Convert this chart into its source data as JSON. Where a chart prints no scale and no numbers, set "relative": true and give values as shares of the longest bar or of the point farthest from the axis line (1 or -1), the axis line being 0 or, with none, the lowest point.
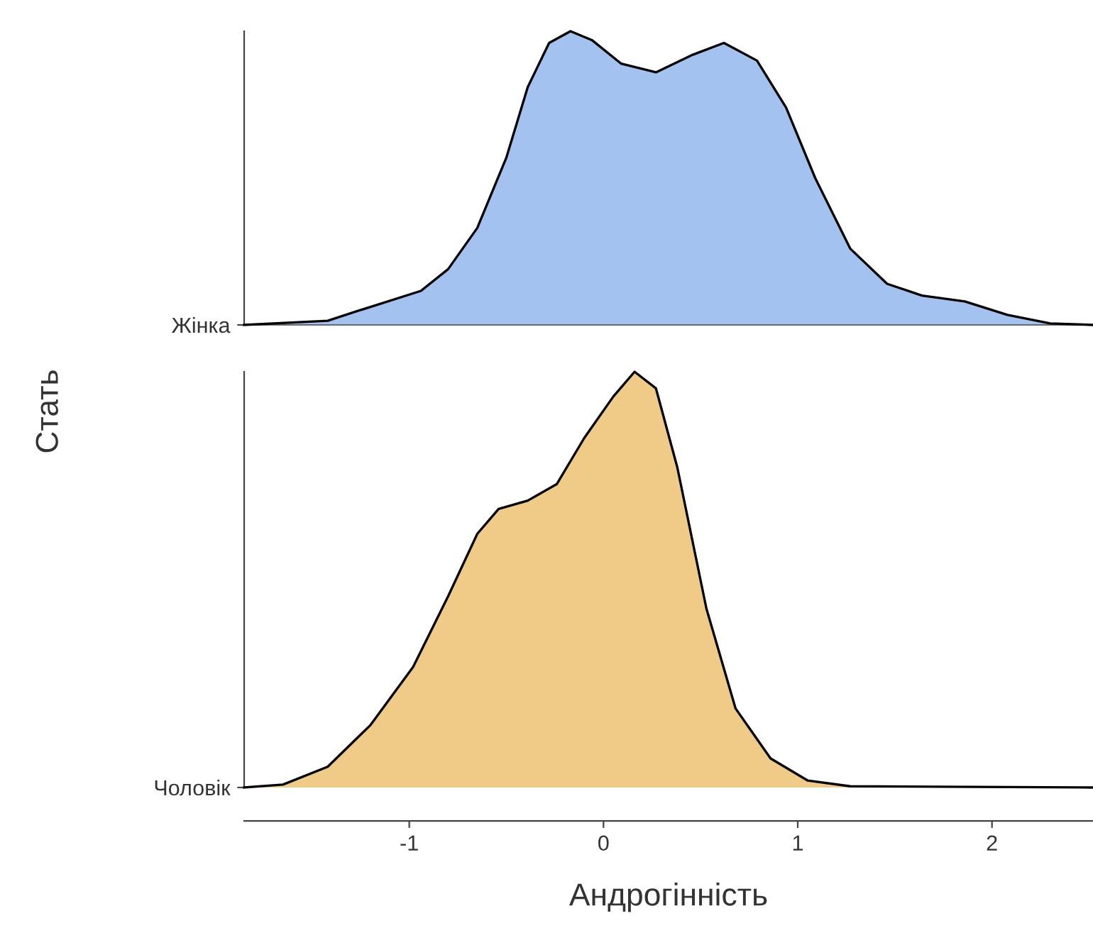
{
  "chart_data": [
    {
      "type": "area",
      "relative": true,
      "tick_labels": "y",
      "ylabel": "Стать",
      "xlim": [
        -1.85,
        2.52
      ],
      "x": [
        -1.85,
        -1.42,
        -1.24,
        -0.94,
        -0.8,
        -0.65,
        -0.5,
        -0.39,
        -0.28,
        -0.17,
        -0.06,
        0.09,
        0.27,
        0.46,
        0.62,
        0.79,
        0.94,
        1.09,
        1.27,
        1.46,
        1.64,
        1.86,
        2.08,
        2.3,
        2.52
      ],
      "series": [
        {
          "name": "Жінка",
          "color": "#a4c2f0",
          "values": [
            0,
            0.014,
            0.053,
            0.116,
            0.19,
            0.33,
            0.57,
            0.81,
            0.96,
            1.0,
            0.97,
            0.89,
            0.86,
            0.92,
            0.96,
            0.9,
            0.74,
            0.5,
            0.26,
            0.14,
            0.1,
            0.08,
            0.034,
            0.005,
            0
          ]
        }
      ]
    },
    {
      "type": "area",
      "relative": true,
      "xlabel": "Андрогінність",
      "xlim": [
        -1.85,
        2.52
      ],
      "xticks": [
        {
          "value": -1,
          "label": "-1"
        },
        0,
        1,
        2
      ],
      "x": [
        -1.85,
        -1.65,
        -1.42,
        -1.2,
        -0.98,
        -0.8,
        -0.65,
        -0.54,
        -0.39,
        -0.24,
        -0.1,
        0.05,
        0.16,
        0.27,
        0.38,
        0.53,
        0.68,
        0.86,
        1.05,
        1.27,
        2.52
      ],
      "series": [
        {
          "name": "Чоловік",
          "color": "#f0cb88",
          "values": [
            0,
            0.007,
            0.05,
            0.15,
            0.29,
            0.46,
            0.61,
            0.67,
            0.69,
            0.73,
            0.84,
            0.94,
            1.0,
            0.96,
            0.77,
            0.43,
            0.19,
            0.07,
            0.017,
            0.003,
            0
          ]
        }
      ]
    }
  ]
}
